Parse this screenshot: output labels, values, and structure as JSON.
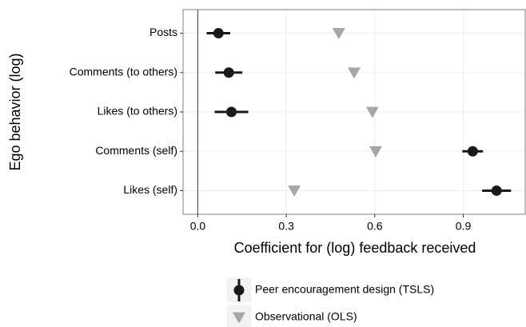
{
  "chart_data": {
    "type": "dot",
    "xlabel": "Coefficient for (log) feedback received",
    "ylabel": "Ego behavior (log)",
    "categories": [
      "Posts",
      "Comments (to others)",
      "Likes (to others)",
      "Comments (self)",
      "Likes (self)"
    ],
    "series": [
      {
        "name": "Peer encouragement design (TSLS)",
        "color": "#1a1a1a",
        "marker": "circle",
        "values": [
          0.07,
          0.105,
          0.114,
          0.932,
          1.013
        ],
        "errors": [
          0.04,
          0.046,
          0.057,
          0.035,
          0.049
        ]
      },
      {
        "name": "Observational (OLS)",
        "color": "#a6a6a6",
        "marker": "triangle-down",
        "values": [
          0.478,
          0.53,
          0.592,
          0.603,
          0.327
        ]
      }
    ],
    "xlim": [
      -0.05,
      1.11
    ],
    "xticks": [
      {
        "value": 0,
        "label": "0.0"
      },
      0.3,
      0.6,
      0.9
    ],
    "grid": true,
    "legend": "bottom"
  }
}
